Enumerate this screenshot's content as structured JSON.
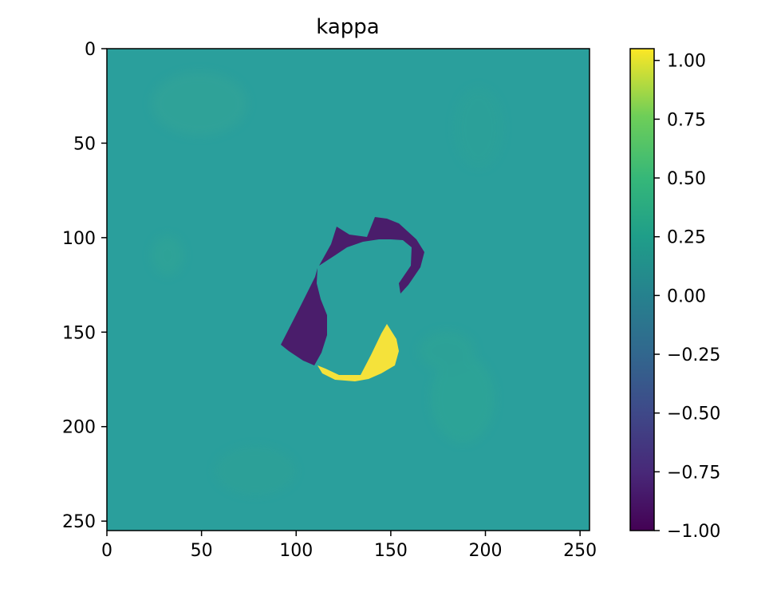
{
  "chart_data": {
    "type": "heatmap",
    "title": "kappa",
    "xlabel": "",
    "ylabel": "",
    "x_ticks": [
      "0",
      "50",
      "100",
      "150",
      "200",
      "250"
    ],
    "y_ticks": [
      "0",
      "50",
      "100",
      "150",
      "200",
      "250"
    ],
    "xlim": [
      0,
      255
    ],
    "ylim": [
      255,
      0
    ],
    "colormap": "viridis",
    "colorbar": {
      "min": -1.0,
      "max": 1.05,
      "ticks": [
        "1.00",
        "0.75",
        "0.50",
        "0.25",
        "0.00",
        "−0.25",
        "−0.50",
        "−0.75",
        "−1.00"
      ],
      "tick_values": [
        1.0,
        0.75,
        0.5,
        0.25,
        0.0,
        -0.25,
        -0.5,
        -0.75,
        -1.0
      ]
    },
    "background_value": 0.05,
    "regions": [
      {
        "name": "negative-region-top",
        "value": -1.0
      },
      {
        "name": "negative-region-left",
        "value": -1.0
      },
      {
        "name": "positive-region-crescent",
        "value": 1.0
      }
    ],
    "colors": {
      "background": "#2a9f9c",
      "negative": "#4a1d6b",
      "positive": "#f5e23a"
    }
  }
}
